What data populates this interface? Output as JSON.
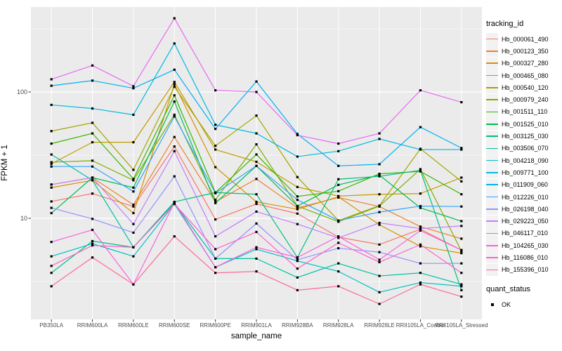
{
  "chart_data": {
    "type": "line",
    "yscale": "log10",
    "xlabel": "sample_name",
    "ylabel": "FPKM + 1",
    "y_ticks": [
      "100",
      "10"
    ],
    "ylim": [
      1.6,
      470
    ],
    "grid": true,
    "legend_position": "right",
    "legend_title": "tracking_id",
    "marker": "black-square",
    "categories": [
      "PB350LA",
      "RRIM600LA",
      "RRIM600LE",
      "RRIM600SE",
      "RRIM600PE",
      "RRIM901LA",
      "RRIM928BA",
      "RRIM928LA",
      "RRIM928LE",
      "RRII105LA_Control",
      "RRII105LA_Stressed"
    ],
    "series": [
      {
        "name": "Hb_000061_490",
        "color": "#F8766D",
        "values": [
          13.6,
          15.7,
          12.4,
          37,
          9.8,
          13,
          10.9,
          7.1,
          6.2,
          8.2,
          5.6
        ]
      },
      {
        "name": "Hb_000123_350",
        "color": "#EA8331",
        "values": [
          18.5,
          21,
          12.8,
          44,
          13.5,
          20.5,
          12.1,
          14.6,
          12.4,
          8.6,
          6.9
        ]
      },
      {
        "name": "Hb_000327_280",
        "color": "#D89000",
        "values": [
          17.5,
          20,
          11,
          115,
          25.4,
          13.5,
          11.8,
          14.8,
          8.9,
          6,
          5.3
        ]
      },
      {
        "name": "Hb_000465_080",
        "color": "#C09B00",
        "values": [
          27,
          40,
          40,
          120,
          35,
          28,
          17.7,
          15,
          15.5,
          15.7,
          21
        ]
      },
      {
        "name": "Hb_000540_120",
        "color": "#A3A500",
        "values": [
          49,
          57,
          24.2,
          110,
          37.5,
          65,
          21.2,
          9.6,
          12.6,
          35.5,
          19.6
        ]
      },
      {
        "name": "Hb_000979_240",
        "color": "#7CAE00",
        "values": [
          27.8,
          28.6,
          20,
          66,
          14,
          38.5,
          12.5,
          9.4,
          12.5,
          24.5,
          5.5
        ]
      },
      {
        "name": "Hb_001511_110",
        "color": "#39B600",
        "values": [
          39,
          47,
          20.5,
          94,
          16,
          32,
          14.9,
          16.4,
          22.5,
          23.5,
          15.5
        ]
      },
      {
        "name": "Hb_001525_010",
        "color": "#00BB4E",
        "values": [
          11,
          21,
          17.5,
          84,
          13.2,
          26,
          12.5,
          18.4,
          22,
          12.1,
          9.5
        ]
      },
      {
        "name": "Hb_003125_030",
        "color": "#00BF7D",
        "values": [
          3.7,
          6.6,
          5.9,
          13.5,
          16,
          15.5,
          4.9,
          20.4,
          21.5,
          24,
          2.7
        ]
      },
      {
        "name": "Hb_003506_070",
        "color": "#00C1A3",
        "values": [
          32,
          20,
          5.9,
          13.2,
          4.8,
          4.8,
          3.4,
          4.4,
          3.5,
          3.7,
          3
        ]
      },
      {
        "name": "Hb_004218_090",
        "color": "#00BFC4",
        "values": [
          5,
          6.3,
          5,
          13,
          4.1,
          5.7,
          4.6,
          3.8,
          2.6,
          3.1,
          2.9
        ]
      },
      {
        "name": "Hb_009771_100",
        "color": "#00BAE0",
        "values": [
          79,
          74,
          66,
          242,
          55,
          47,
          30.8,
          34,
          42.5,
          35,
          35
        ]
      },
      {
        "name": "Hb_011909_060",
        "color": "#00B0F6",
        "values": [
          112,
          123,
          107,
          150,
          51,
          121,
          46.5,
          26,
          26.8,
          52.7,
          36
        ]
      },
      {
        "name": "Hb_012226_010",
        "color": "#35A2FF",
        "values": [
          25.7,
          25.7,
          16.3,
          64,
          15.8,
          26,
          14,
          9.6,
          11.2,
          12.5,
          12.4
        ]
      },
      {
        "name": "Hb_026198_040",
        "color": "#9590FF",
        "values": [
          12.1,
          9.9,
          7.7,
          21.5,
          4.8,
          9.1,
          4.7,
          5.8,
          5.4,
          4.4,
          4.4
        ]
      },
      {
        "name": "Hb_029223_050",
        "color": "#C77CFF",
        "values": [
          18.5,
          21,
          9,
          34,
          7.2,
          11.3,
          9,
          7,
          9.2,
          8.3,
          8.7
        ]
      },
      {
        "name": "Hb_046117_010",
        "color": "#E76BF3",
        "values": [
          126,
          162,
          111,
          383,
          103,
          100,
          45.5,
          39,
          47,
          103,
          83
        ]
      },
      {
        "name": "Hb_104265_030",
        "color": "#FA62DB",
        "values": [
          6.5,
          8.1,
          3,
          13.3,
          4.1,
          5.9,
          4.9,
          7.2,
          4.7,
          8,
          5.6
        ]
      },
      {
        "name": "Hb_116086_010",
        "color": "#FF61CC",
        "values": [
          4.2,
          6.1,
          5.9,
          13,
          5.7,
          7.8,
          4,
          6.4,
          4.5,
          6.2,
          3.7
        ]
      },
      {
        "name": "Hb_155396_010",
        "color": "#FF6A98",
        "values": [
          2.9,
          4.9,
          3,
          7.2,
          3.7,
          3.8,
          2.7,
          2.9,
          2.1,
          3,
          2.4
        ]
      }
    ],
    "legend2": {
      "title": "quant_status",
      "items": [
        {
          "label": "OK",
          "marker": "black-square"
        }
      ]
    }
  },
  "colors": {
    "panel_bg": "#EBEBEB",
    "grid_major": "#FFFFFF",
    "grid_minor": "#FFFFFF",
    "tick_mark": "#333333",
    "tick_text": "#4D4D4D",
    "point": "#000000",
    "legend_key_bg": "#F2F2F2"
  }
}
